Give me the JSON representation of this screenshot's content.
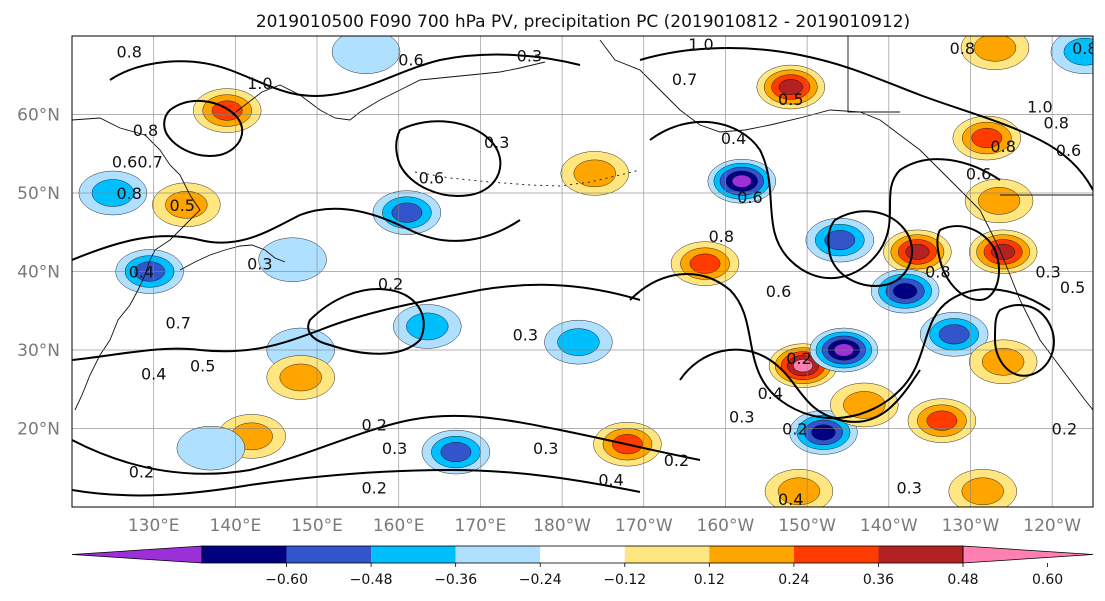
{
  "title": "2019010500 F090 700 hPa PV, precipitation PC (2019010812 - 2019010912)",
  "map": {
    "lon_range": [
      120,
      245
    ],
    "lat_range": [
      10,
      70
    ],
    "grid": true,
    "lat_ticks": [
      {
        "lat": 60,
        "label": "60°N"
      },
      {
        "lat": 50,
        "label": "50°N"
      },
      {
        "lat": 40,
        "label": "40°N"
      },
      {
        "lat": 30,
        "label": "30°N"
      },
      {
        "lat": 20,
        "label": "20°N"
      }
    ],
    "lon_ticks": [
      {
        "lon": 130,
        "label": "130°E"
      },
      {
        "lon": 140,
        "label": "140°E"
      },
      {
        "lon": 150,
        "label": "150°E"
      },
      {
        "lon": 160,
        "label": "160°E"
      },
      {
        "lon": 170,
        "label": "170°E"
      },
      {
        "lon": 180,
        "label": "180°W"
      },
      {
        "lon": 190,
        "label": "170°W"
      },
      {
        "lon": 200,
        "label": "160°W"
      },
      {
        "lon": 210,
        "label": "150°W"
      },
      {
        "lon": 220,
        "label": "140°W"
      },
      {
        "lon": 230,
        "label": "130°W"
      },
      {
        "lon": 240,
        "label": "120°W"
      }
    ]
  },
  "colorbar": {
    "ticks": [
      "−0.60",
      "−0.48",
      "−0.36",
      "−0.24",
      "−0.12",
      "0.12",
      "0.24",
      "0.36",
      "0.48",
      "0.60"
    ],
    "colors": [
      "#9b30d8",
      "#000080",
      "#3355cc",
      "#00bfff",
      "#b0e0ff",
      "#ffffff",
      "#ffe680",
      "#ffa500",
      "#ff3c00",
      "#b22222",
      "#ff80b0"
    ]
  },
  "chart_data": {
    "type": "contour-map",
    "variables": [
      "700 hPa PV",
      "precipitation PC"
    ],
    "pv_contour_labels": [
      {
        "lon": 127.0,
        "lat": 68.0,
        "text": "0.8"
      },
      {
        "lon": 143.0,
        "lat": 64.0,
        "text": "1.0"
      },
      {
        "lon": 129.0,
        "lat": 58.0,
        "text": "0.8"
      },
      {
        "lon": 128.0,
        "lat": 54.0,
        "text": "0.60.7"
      },
      {
        "lon": 127.0,
        "lat": 50.0,
        "text": "0.8"
      },
      {
        "lon": 133.5,
        "lat": 48.5,
        "text": "0.5"
      },
      {
        "lon": 128.5,
        "lat": 40.0,
        "text": "0.4"
      },
      {
        "lon": 133.0,
        "lat": 33.5,
        "text": "0.7"
      },
      {
        "lon": 130.0,
        "lat": 27.0,
        "text": "0.4"
      },
      {
        "lon": 136.0,
        "lat": 28.0,
        "text": "0.5"
      },
      {
        "lon": 143.0,
        "lat": 41.0,
        "text": "0.3"
      },
      {
        "lon": 161.5,
        "lat": 67.0,
        "text": "0.6"
      },
      {
        "lon": 176.0,
        "lat": 67.5,
        "text": "0.3"
      },
      {
        "lon": 164.0,
        "lat": 52.0,
        "text": "0.6"
      },
      {
        "lon": 159.0,
        "lat": 38.5,
        "text": "0.2"
      },
      {
        "lon": 172.0,
        "lat": 56.5,
        "text": "0.3"
      },
      {
        "lon": 175.5,
        "lat": 32.0,
        "text": "0.3"
      },
      {
        "lon": 197.0,
        "lat": 69.0,
        "text": "1.0"
      },
      {
        "lon": 195.0,
        "lat": 64.5,
        "text": "0.7"
      },
      {
        "lon": 208.0,
        "lat": 62.0,
        "text": "0.5"
      },
      {
        "lon": 201.0,
        "lat": 57.0,
        "text": "0.4"
      },
      {
        "lon": 199.5,
        "lat": 44.5,
        "text": "0.8"
      },
      {
        "lon": 203.0,
        "lat": 49.5,
        "text": "0.6"
      },
      {
        "lon": 206.5,
        "lat": 37.5,
        "text": "0.6"
      },
      {
        "lon": 209.0,
        "lat": 29.0,
        "text": "0.2"
      },
      {
        "lon": 205.5,
        "lat": 24.5,
        "text": "0.4"
      },
      {
        "lon": 202.0,
        "lat": 21.5,
        "text": "0.3"
      },
      {
        "lon": 208.5,
        "lat": 20.0,
        "text": "0.2"
      },
      {
        "lon": 222.5,
        "lat": 12.5,
        "text": "0.3"
      },
      {
        "lon": 208.0,
        "lat": 11.0,
        "text": "0.4"
      },
      {
        "lon": 186.0,
        "lat": 13.5,
        "text": "0.4"
      },
      {
        "lon": 194.0,
        "lat": 16.0,
        "text": "0.2"
      },
      {
        "lon": 178.0,
        "lat": 17.5,
        "text": "0.3"
      },
      {
        "lon": 157.0,
        "lat": 20.5,
        "text": "0.2"
      },
      {
        "lon": 159.5,
        "lat": 17.5,
        "text": "0.3"
      },
      {
        "lon": 157.0,
        "lat": 12.5,
        "text": "0.2"
      },
      {
        "lon": 128.5,
        "lat": 14.5,
        "text": "0.2"
      },
      {
        "lon": 226.0,
        "lat": 40.0,
        "text": "0.8"
      },
      {
        "lon": 231.0,
        "lat": 52.5,
        "text": "0.6"
      },
      {
        "lon": 234.0,
        "lat": 56.0,
        "text": "0.8"
      },
      {
        "lon": 238.5,
        "lat": 61.0,
        "text": "1.0"
      },
      {
        "lon": 240.5,
        "lat": 59.0,
        "text": "0.8"
      },
      {
        "lon": 242.0,
        "lat": 55.5,
        "text": "0.6"
      },
      {
        "lon": 239.5,
        "lat": 40.0,
        "text": "0.3"
      },
      {
        "lon": 242.5,
        "lat": 38.0,
        "text": "0.5"
      },
      {
        "lon": 241.5,
        "lat": 20.0,
        "text": "0.2"
      },
      {
        "lon": 244.0,
        "lat": 68.5,
        "text": "0.8"
      },
      {
        "lon": 229.0,
        "lat": 68.5,
        "text": "0.8"
      }
    ],
    "precip_anomaly_blobs": [
      {
        "lon": 208.0,
        "lat": 63.5,
        "value": 0.55
      },
      {
        "lon": 139.0,
        "lat": 60.5,
        "value": 0.4
      },
      {
        "lon": 232.0,
        "lat": 57.0,
        "value": 0.45
      },
      {
        "lon": 233.5,
        "lat": 49.0,
        "value": 0.3
      },
      {
        "lon": 134.0,
        "lat": 48.5,
        "value": 0.35
      },
      {
        "lon": 184.0,
        "lat": 52.5,
        "value": 0.25
      },
      {
        "lon": 202.0,
        "lat": 51.5,
        "value": -0.6
      },
      {
        "lon": 161.0,
        "lat": 47.5,
        "value": -0.45
      },
      {
        "lon": 125.0,
        "lat": 50.0,
        "value": -0.25
      },
      {
        "lon": 129.5,
        "lat": 40.0,
        "value": -0.45
      },
      {
        "lon": 147.0,
        "lat": 41.5,
        "value": -0.2
      },
      {
        "lon": 197.5,
        "lat": 41.0,
        "value": 0.4
      },
      {
        "lon": 223.5,
        "lat": 42.5,
        "value": 0.5
      },
      {
        "lon": 234.0,
        "lat": 42.5,
        "value": 0.55
      },
      {
        "lon": 214.0,
        "lat": 44.0,
        "value": -0.4
      },
      {
        "lon": 222.0,
        "lat": 37.5,
        "value": -0.5
      },
      {
        "lon": 209.5,
        "lat": 28.0,
        "value": 0.6
      },
      {
        "lon": 214.5,
        "lat": 30.0,
        "value": -0.6
      },
      {
        "lon": 228.0,
        "lat": 32.0,
        "value": -0.45
      },
      {
        "lon": 234.0,
        "lat": 28.5,
        "value": 0.35
      },
      {
        "lon": 226.5,
        "lat": 21.0,
        "value": 0.4
      },
      {
        "lon": 212.0,
        "lat": 19.5,
        "value": -0.55
      },
      {
        "lon": 217.0,
        "lat": 23.0,
        "value": 0.35
      },
      {
        "lon": 188.0,
        "lat": 18.0,
        "value": 0.4
      },
      {
        "lon": 167.0,
        "lat": 17.0,
        "value": -0.4
      },
      {
        "lon": 163.5,
        "lat": 33.0,
        "value": -0.25
      },
      {
        "lon": 182.0,
        "lat": 31.0,
        "value": -0.25
      },
      {
        "lon": 148.0,
        "lat": 30.0,
        "value": -0.2
      },
      {
        "lon": 148.0,
        "lat": 26.5,
        "value": 0.3
      },
      {
        "lon": 142.0,
        "lat": 19.0,
        "value": 0.3
      },
      {
        "lon": 137.0,
        "lat": 17.5,
        "value": -0.2
      },
      {
        "lon": 209.0,
        "lat": 12.0,
        "value": 0.3
      },
      {
        "lon": 231.5,
        "lat": 12.0,
        "value": 0.3
      },
      {
        "lon": 156.0,
        "lat": 68.0,
        "value": -0.2
      },
      {
        "lon": 244.0,
        "lat": 68.0,
        "value": -0.25
      },
      {
        "lon": 233.0,
        "lat": 68.5,
        "value": 0.3
      }
    ]
  }
}
